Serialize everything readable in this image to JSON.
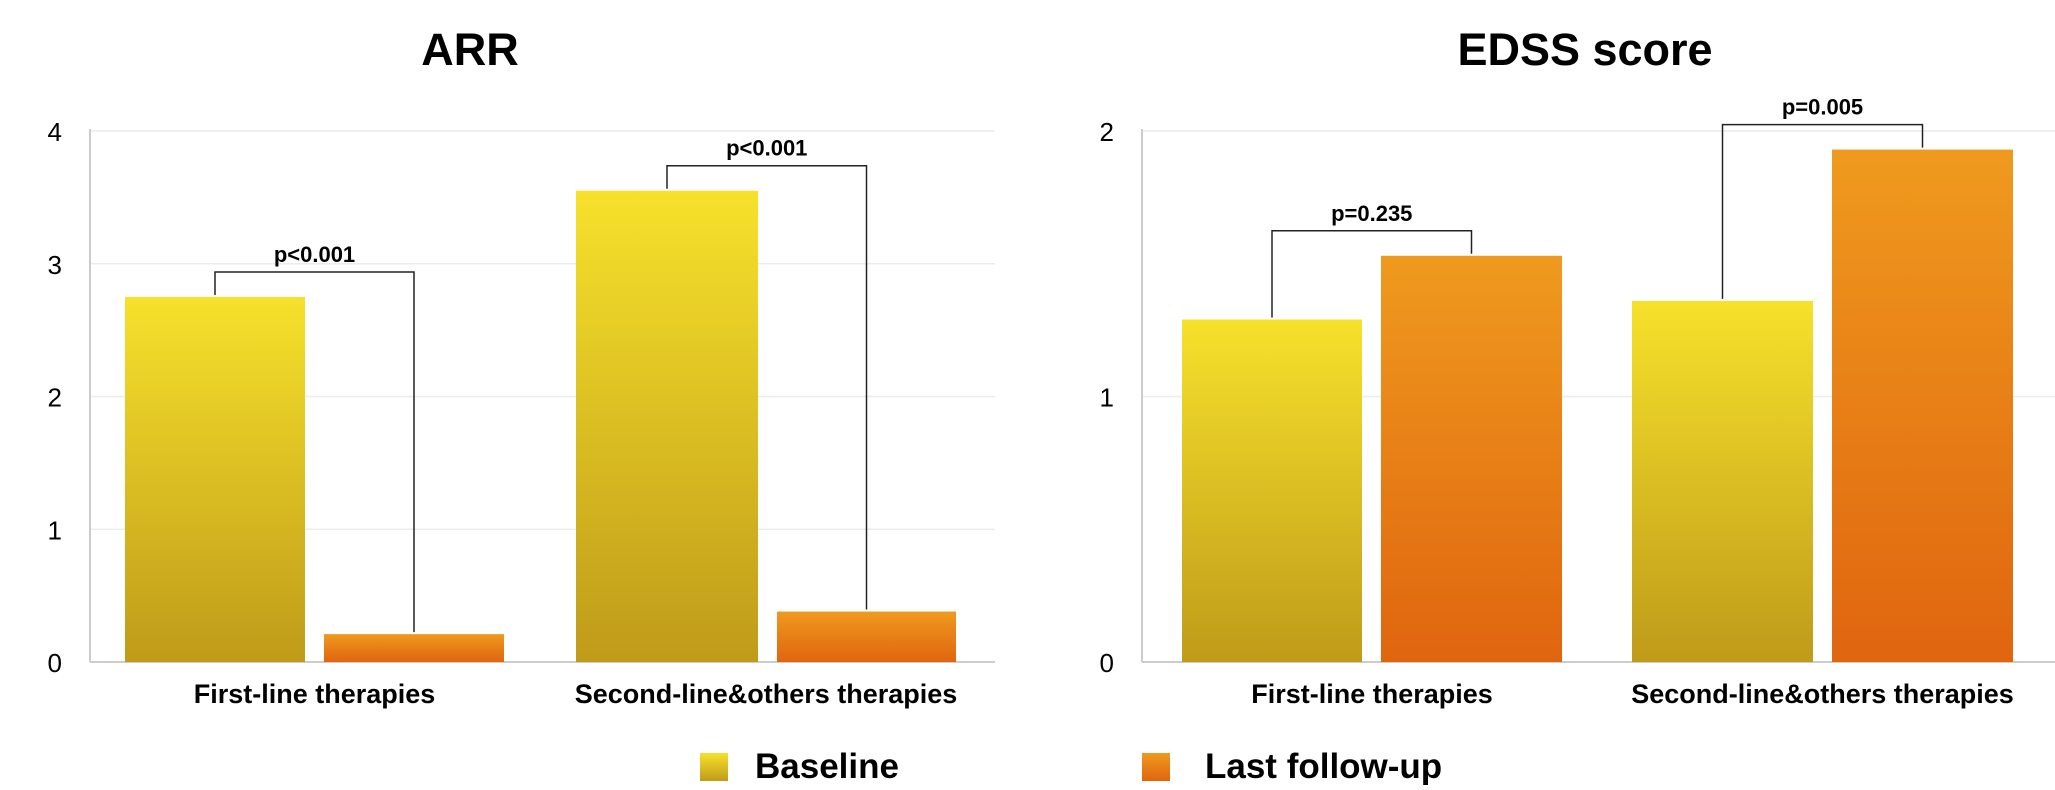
{
  "colors": {
    "baseline_top": "#f7e12b",
    "baseline_bottom": "#bf9b1a",
    "followup_top": "#ef9a1e",
    "followup_bottom": "#e0650f",
    "grid": "#ececec",
    "axis": "#cccccc",
    "bracket": "#222222"
  },
  "legend": {
    "baseline_label": "Baseline",
    "followup_label": "Last follow-up"
  },
  "chart_data": [
    {
      "type": "bar",
      "title": "ARR",
      "categories": [
        "First-line therapies",
        "Second-line&others therapies"
      ],
      "series": [
        {
          "name": "Baseline",
          "values": [
            2.75,
            3.55
          ]
        },
        {
          "name": "Last follow-up",
          "values": [
            0.21,
            0.38
          ]
        }
      ],
      "ylim": [
        0,
        4
      ],
      "yticks": [
        "0",
        "1",
        "2",
        "3",
        "4"
      ],
      "annotations": [
        "p<0.001",
        "p<0.001"
      ],
      "grid": true,
      "legend": "bottom"
    },
    {
      "type": "bar",
      "title": "EDSS score",
      "categories": [
        "First-line therapies",
        "Second-line&others therapies"
      ],
      "series": [
        {
          "name": "Baseline",
          "values": [
            1.29,
            1.36
          ]
        },
        {
          "name": "Last follow-up",
          "values": [
            1.53,
            1.93
          ]
        }
      ],
      "ylim": [
        0,
        2
      ],
      "yticks": [
        "0",
        "1",
        "2"
      ],
      "annotations": [
        "p=0.235",
        "p=0.005"
      ],
      "grid": true,
      "legend": "bottom"
    }
  ]
}
